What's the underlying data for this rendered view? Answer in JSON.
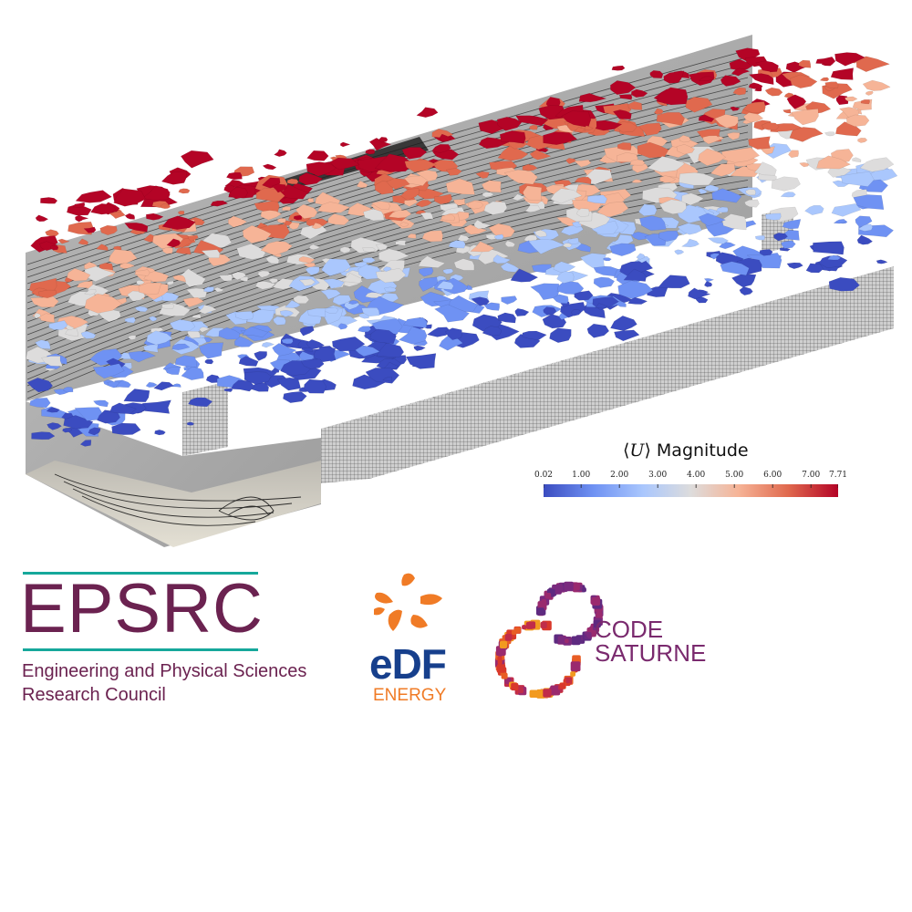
{
  "visualization": {
    "description_kind": "CFD isosurface rendering",
    "colormap": [
      "#3b4cc0",
      "#6f92f3",
      "#aac7fd",
      "#dddcdc",
      "#f6b497",
      "#e0694e",
      "#b40426"
    ]
  },
  "colorbar": {
    "title_symbol": "U",
    "title_text": "Magnitude",
    "ticks": [
      "0.02",
      "1.00",
      "2.00",
      "3.00",
      "4.00",
      "5.00",
      "6.00",
      "7.00",
      "7.71"
    ],
    "min": 0.02,
    "max": 7.71
  },
  "logos": {
    "epsrc": {
      "word": "EPSRC",
      "line1": "Engineering and Physical Sciences",
      "line2": "Research Council",
      "color": "#6b2250",
      "accent": "#16a89b"
    },
    "edf": {
      "word": "eDF",
      "sub": "ENERGY",
      "color": "#163f8c",
      "accent": "#f07b26"
    },
    "code_saturne": {
      "line1": "CODE",
      "line2": "SATURNE",
      "color": "#7a2a6e"
    }
  }
}
